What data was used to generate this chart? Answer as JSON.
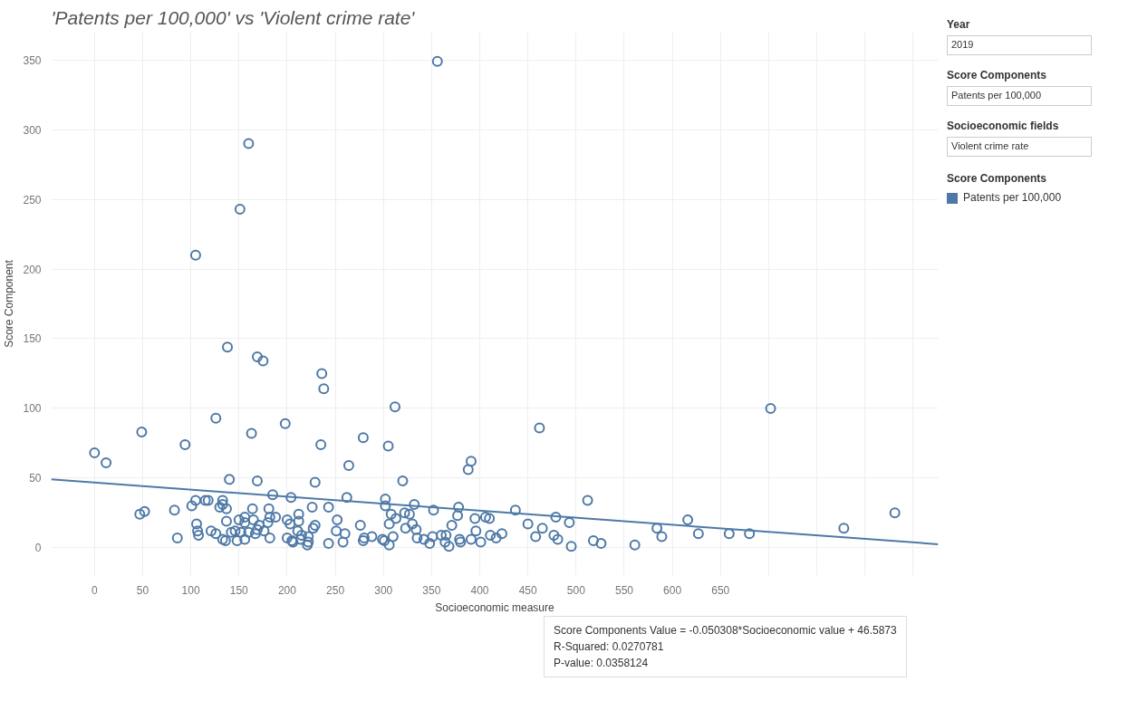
{
  "chart_data": {
    "type": "scatter",
    "title": "'Patents per 100,000'  vs 'Violent crime rate'",
    "xlabel": "Socioeconomic measure",
    "ylabel": "Score Component",
    "legend_title": "Score Components",
    "legend": "right",
    "grid": true,
    "xlim": [
      -45,
      876
    ],
    "ylim": [
      -20,
      370
    ],
    "xticks": [
      0,
      50,
      100,
      150,
      200,
      250,
      300,
      350,
      400,
      450,
      500,
      550,
      600,
      650,
      {
        "value": 700,
        "label": null
      },
      {
        "value": 750,
        "label": null
      },
      {
        "value": 800,
        "label": null
      },
      {
        "value": 850,
        "label": null
      }
    ],
    "yticks": [
      0,
      50,
      100,
      150,
      200,
      250,
      300,
      350
    ],
    "annotations": [
      "Year",
      "2019",
      "Score Components",
      "Patents per 100,000",
      "Socioeconomic fields",
      "Violent crime rate",
      "Score Components Value = -0.050308*Socioeconomic value + 46.5873",
      "R-Squared: 0.0270781",
      "P-value: 0.0358124"
    ],
    "series": [
      {
        "name": "Patents per 100,000",
        "color": "#4e79a7",
        "marker": "circle",
        "x": [
          356,
          160,
          151,
          105,
          138,
          169,
          175,
          236,
          238,
          312,
          702,
          0,
          12,
          49,
          94,
          126,
          163,
          198,
          235,
          279,
          264,
          305,
          320,
          140,
          169,
          229,
          462,
          388,
          391,
          512,
          616,
          627,
          584,
          589,
          561,
          526,
          518,
          495,
          493,
          479,
          481,
          477,
          465,
          458,
          450,
          437,
          423,
          417,
          411,
          410,
          406,
          401,
          396,
          391,
          395,
          378,
          377,
          371,
          379,
          380,
          368,
          365,
          364,
          360,
          351,
          352,
          348,
          342,
          335,
          334,
          330,
          323,
          332,
          327,
          322,
          313,
          306,
          308,
          302,
          302,
          310,
          306,
          301,
          299,
          279,
          280,
          288,
          276,
          47,
          52,
          83,
          86,
          101,
          105,
          115,
          118,
          133,
          133,
          130,
          137,
          106,
          107,
          108,
          121,
          126,
          133,
          136,
          137,
          142,
          146,
          148,
          150,
          156,
          156,
          156,
          152,
          160,
          164,
          165,
          167,
          169,
          171,
          176,
          180,
          181,
          182,
          182,
          185,
          188,
          200,
          203,
          204,
          200,
          205,
          206,
          212,
          212,
          211,
          215,
          214,
          222,
          222,
          221,
          226,
          227,
          229,
          243,
          243,
          252,
          251,
          260,
          258,
          262,
          659,
          680,
          778,
          831
        ],
        "values": [
          349,
          290,
          243,
          210,
          144,
          137,
          134,
          125,
          114,
          101,
          100,
          68,
          61,
          83,
          74,
          93,
          82,
          89,
          74,
          79,
          59,
          73,
          48,
          49,
          48,
          47,
          86,
          56,
          62,
          34,
          20,
          10,
          14,
          8,
          2,
          3,
          5,
          1,
          18,
          22,
          6,
          9,
          14,
          8,
          17,
          27,
          10,
          7,
          9,
          21,
          22,
          4,
          12,
          6,
          21,
          29,
          23,
          16,
          6,
          4,
          1,
          9,
          4,
          9,
          8,
          27,
          3,
          6,
          7,
          13,
          17,
          14,
          31,
          24,
          25,
          21,
          17,
          24,
          35,
          30,
          8,
          2,
          5,
          6,
          5,
          7,
          8,
          16,
          24,
          26,
          27,
          7,
          30,
          34,
          34,
          34,
          34,
          31,
          29,
          28,
          17,
          12,
          9,
          12,
          10,
          6,
          5,
          19,
          11,
          12,
          5,
          20,
          22,
          18,
          6,
          11,
          11,
          28,
          20,
          10,
          13,
          16,
          12,
          18,
          28,
          22,
          7,
          38,
          22,
          20,
          17,
          36,
          7,
          5,
          4,
          24,
          19,
          12,
          9,
          6,
          8,
          4,
          2,
          29,
          14,
          16,
          29,
          3,
          20,
          12,
          10,
          4,
          36,
          10,
          10,
          14,
          25
        ]
      },
      {
        "type": "line",
        "color": "#4e79a7",
        "x": [
          -45,
          876
        ],
        "values": [
          49,
          2.5
        ]
      }
    ]
  }
}
